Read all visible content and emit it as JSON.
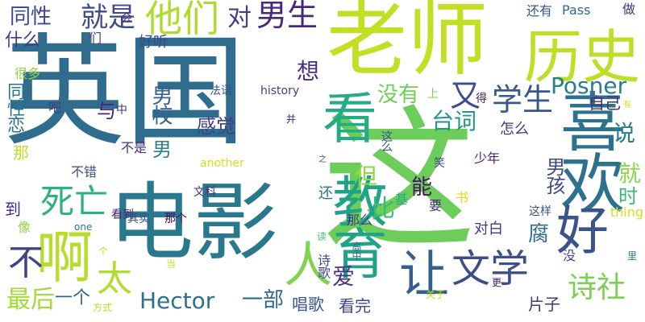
{
  "words": [
    {
      "text": "英国",
      "color": "#2f6c8e",
      "vertical": false
    },
    {
      "text": "这",
      "color": "#6ccd5a",
      "vertical": false
    },
    {
      "text": "老师",
      "color": "#c2df23",
      "vertical": false
    },
    {
      "text": "电影",
      "color": "#2a788e",
      "vertical": false
    },
    {
      "text": "历史",
      "color": "#bddf26",
      "vertical": false
    },
    {
      "text": "喜欢",
      "color": "#2c728e",
      "vertical": true
    },
    {
      "text": "看",
      "color": "#25ac82",
      "vertical": false
    },
    {
      "text": "教育",
      "color": "#20a386",
      "vertical": true
    },
    {
      "text": "好",
      "color": "#3b528b",
      "vertical": false
    },
    {
      "text": "啊",
      "color": "#b5de2b",
      "vertical": false
    },
    {
      "text": "人",
      "color": "#7fd34e",
      "vertical": false
    },
    {
      "text": "让",
      "color": "#355f8d",
      "vertical": false
    },
    {
      "text": "文学",
      "color": "#3d4e8a",
      "vertical": false
    },
    {
      "text": "死亡",
      "color": "#2db27d",
      "vertical": false
    },
    {
      "text": "他们",
      "color": "#addc30",
      "vertical": false
    },
    {
      "text": "男生",
      "color": "#482878",
      "vertical": false
    },
    {
      "text": "学生",
      "color": "#38588c",
      "vertical": false
    },
    {
      "text": "Posner",
      "color": "#287d8e",
      "vertical": false
    },
    {
      "text": "Hector",
      "color": "#2e6f8e",
      "vertical": false
    },
    {
      "text": "诗社",
      "color": "#7ad151",
      "vertical": false
    },
    {
      "text": "太",
      "color": "#b0dd2f",
      "vertical": false
    },
    {
      "text": "不",
      "color": "#414487",
      "vertical": false
    },
    {
      "text": "又",
      "color": "#3e4c8a",
      "vertical": false
    },
    {
      "text": "就是",
      "color": "#3e4989",
      "vertical": false
    },
    {
      "text": "同性",
      "color": "#404588",
      "vertical": false
    },
    {
      "text": "对",
      "color": "#433e85",
      "vertical": false
    },
    {
      "text": "最后",
      "color": "#a2da37",
      "vertical": false
    },
    {
      "text": "男校",
      "color": "#34618d",
      "vertical": true
    },
    {
      "text": "台词",
      "color": "#1f958b",
      "vertical": false
    },
    {
      "text": "感觉",
      "color": "#424086",
      "vertical": false
    },
    {
      "text": "没有",
      "color": "#6ece58",
      "vertical": false
    },
    {
      "text": "一部",
      "color": "#31688e",
      "vertical": false
    },
    {
      "text": "腐",
      "color": "#2f6b8e",
      "vertical": false
    },
    {
      "text": "说",
      "color": "#297b8e",
      "vertical": false
    },
    {
      "text": "想",
      "color": "#472f7d",
      "vertical": false
    },
    {
      "text": "就",
      "color": "#8bd646",
      "vertical": false
    },
    {
      "text": "时",
      "color": "#37b878",
      "vertical": false
    },
    {
      "text": "男孩",
      "color": "#3f4889",
      "vertical": true
    },
    {
      "text": "能",
      "color": "#471365",
      "vertical": false
    },
    {
      "text": "比",
      "color": "#3aba76",
      "vertical": false
    },
    {
      "text": "但",
      "color": "#93d741",
      "vertical": false
    },
    {
      "text": "男",
      "color": "#25838e",
      "vertical": false
    },
    {
      "text": "爱",
      "color": "#46327e",
      "vertical": false
    },
    {
      "text": "唱歌",
      "color": "#3a548c",
      "vertical": false
    },
    {
      "text": "看完",
      "color": "#3f4788",
      "vertical": false
    },
    {
      "text": "一个",
      "color": "#31678e",
      "vertical": false
    },
    {
      "text": "片子",
      "color": "#453781",
      "vertical": false
    },
    {
      "text": "自己",
      "color": "#46307e",
      "vertical": false
    },
    {
      "text": "同性恋",
      "color": "#2c728e",
      "vertical": true
    },
    {
      "text": "什么",
      "color": "#443a83",
      "vertical": false
    },
    {
      "text": "还有",
      "color": "#3b528b",
      "vertical": false
    },
    {
      "text": "Pass",
      "color": "#31688e",
      "vertical": false
    },
    {
      "text": "做",
      "color": "#46337f",
      "vertical": false
    },
    {
      "text": "们",
      "color": "#404588",
      "vertical": false
    },
    {
      "text": "好听",
      "color": "#3e4a89",
      "vertical": false
    },
    {
      "text": "会",
      "color": "#472d7b",
      "vertical": false
    },
    {
      "text": "很多",
      "color": "#8bd646",
      "vertical": false
    },
    {
      "text": "吧",
      "color": "#424186",
      "vertical": false
    },
    {
      "text": "与",
      "color": "#482677",
      "vertical": false
    },
    {
      "text": "中",
      "color": "#453882",
      "vertical": false
    },
    {
      "text": "法语",
      "color": "#3a548c",
      "vertical": false
    },
    {
      "text": "history",
      "color": "#424086",
      "vertical": false
    },
    {
      "text": "上",
      "color": "#7ad151",
      "vertical": false
    },
    {
      "text": "得",
      "color": "#481a6c",
      "vertical": false
    },
    {
      "text": "不是",
      "color": "#46317e",
      "vertical": false
    },
    {
      "text": "并",
      "color": "#481f71",
      "vertical": false
    },
    {
      "text": "那",
      "color": "#bddf26",
      "vertical": false
    },
    {
      "text": "不错",
      "color": "#3b518b",
      "vertical": false
    },
    {
      "text": "another",
      "color": "#d2e21b",
      "vertical": false
    },
    {
      "text": "之",
      "color": "#3b528b",
      "vertical": false
    },
    {
      "text": "笑",
      "color": "#3f4889",
      "vertical": false
    },
    {
      "text": "少年",
      "color": "#482374",
      "vertical": false
    },
    {
      "text": "怎么",
      "color": "#453882",
      "vertical": false
    },
    {
      "text": "这么",
      "color": "#3c4f8a",
      "vertical": true
    },
    {
      "text": "文科",
      "color": "#46307e",
      "vertical": false
    },
    {
      "text": "还",
      "color": "#2a768e",
      "vertical": false
    },
    {
      "text": "基",
      "color": "#25ab82",
      "vertical": false
    },
    {
      "text": "书",
      "color": "#d8e219",
      "vertical": false
    },
    {
      "text": "要",
      "color": "#472c7a",
      "vertical": false
    },
    {
      "text": "看到",
      "color": "#481f70",
      "vertical": false
    },
    {
      "text": "其实",
      "color": "#3e4a89",
      "vertical": false
    },
    {
      "text": "那个",
      "color": "#471164",
      "vertical": false
    },
    {
      "text": "到",
      "color": "#472c7a",
      "vertical": false
    },
    {
      "text": "像",
      "color": "#8bd646",
      "vertical": false
    },
    {
      "text": "one",
      "color": "#2a788e",
      "vertical": false
    },
    {
      "text": "那么",
      "color": "#453882",
      "vertical": false
    },
    {
      "text": "这样",
      "color": "#3a548c",
      "vertical": false
    },
    {
      "text": "对白",
      "color": "#443983",
      "vertical": false
    },
    {
      "text": "thing",
      "color": "#d2e21b",
      "vertical": false
    },
    {
      "text": "没",
      "color": "#3e4a89",
      "vertical": false
    },
    {
      "text": "里",
      "color": "#2c728e",
      "vertical": false
    },
    {
      "text": "读",
      "color": "#44bf70",
      "vertical": false
    },
    {
      "text": "高中",
      "color": "#31688e",
      "vertical": true
    },
    {
      "text": "诗歌",
      "color": "#3e4989",
      "vertical": true
    },
    {
      "text": "个",
      "color": "#b5de2b",
      "vertical": false
    },
    {
      "text": "当",
      "color": "#c2df23",
      "vertical": false
    },
    {
      "text": "关于",
      "color": "#c8e020",
      "vertical": false
    },
    {
      "text": "更",
      "color": "#481769",
      "vertical": false
    },
    {
      "text": "方式",
      "color": "#c2df23",
      "vertical": false
    },
    {
      "text": "有",
      "color": "#dde318",
      "vertical": false
    }
  ]
}
